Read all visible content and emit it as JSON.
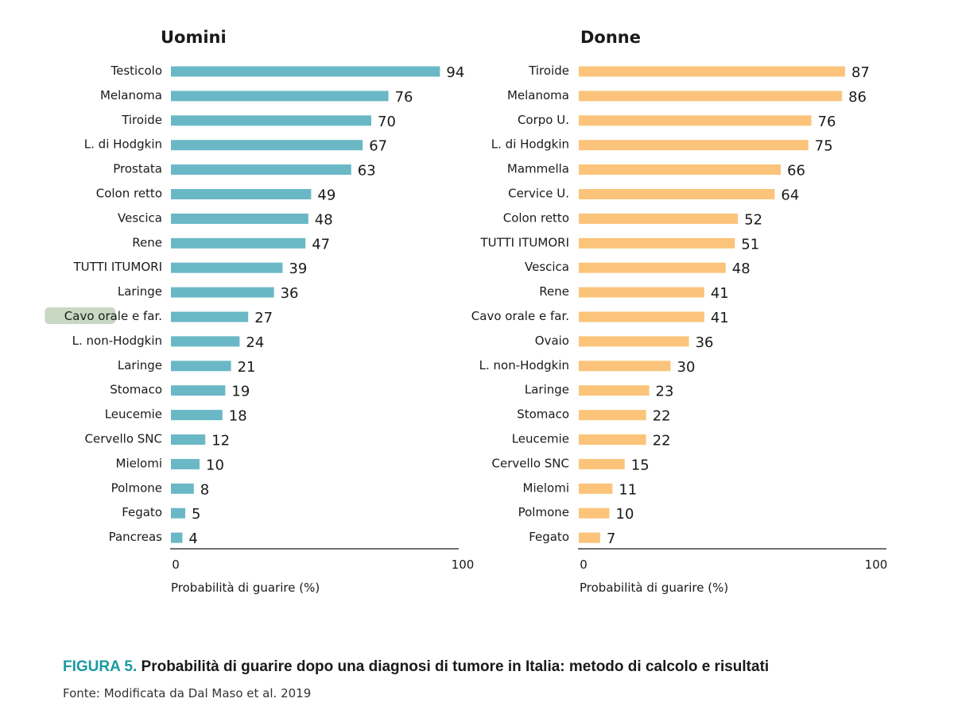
{
  "chart_data": [
    {
      "type": "bar",
      "orientation": "horizontal",
      "title": "Uomini",
      "xlabel": "Probabilità di guarire (%)",
      "xlim": [
        0,
        100
      ],
      "xticks": [
        "0",
        "100"
      ],
      "color": "#6ab8c6",
      "categories": [
        "Testicolo",
        "Melanoma",
        "Tiroide",
        "L. di Hodgkin",
        "Prostata",
        "Colon retto",
        "Vescica",
        "Rene",
        "TUTTI ITUMORI",
        "Laringe",
        "Cavo orale e far.",
        "L. non-Hodgkin",
        "Laringe",
        "Stomaco",
        "Leucemie",
        "Cervello SNC",
        "Mielomi",
        "Polmone",
        "Fegato",
        "Pancreas"
      ],
      "values": [
        94,
        76,
        70,
        67,
        63,
        49,
        48,
        47,
        39,
        36,
        27,
        24,
        21,
        19,
        18,
        12,
        10,
        8,
        5,
        4
      ],
      "highlight": {
        "index": 10,
        "text": "Cavo orale",
        "color": "#c9d8c3"
      }
    },
    {
      "type": "bar",
      "orientation": "horizontal",
      "title": "Donne",
      "xlabel": "Probabilità di guarire (%)",
      "xlim": [
        0,
        100
      ],
      "xticks": [
        "0",
        "100"
      ],
      "color": "#fbc47a",
      "categories": [
        "Tiroide",
        "Melanoma",
        "Corpo U.",
        "L. di Hodgkin",
        "Mammella",
        "Cervice U.",
        "Colon retto",
        "TUTTI ITUMORI",
        "Vescica",
        "Rene",
        "Cavo orale e far.",
        "Ovaio",
        "L. non-Hodgkin",
        "Laringe",
        "Stomaco",
        "Leucemie",
        "Cervello SNC",
        "Mielomi",
        "Polmone",
        "Fegato"
      ],
      "values": [
        87,
        86,
        76,
        75,
        66,
        64,
        52,
        51,
        48,
        41,
        41,
        36,
        30,
        23,
        22,
        22,
        15,
        11,
        10,
        7
      ]
    }
  ],
  "caption": {
    "label": "FIGURA 5.",
    "text": "Probabilità di guarire dopo una diagnosi di tumore in Italia: metodo di calcolo e risultati"
  },
  "source": "Fonte: Modificata da Dal Maso et al. 2019"
}
